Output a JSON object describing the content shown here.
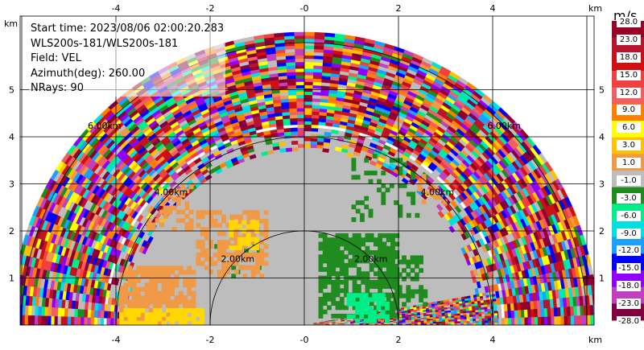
{
  "info": {
    "line1": "Start time: 2023/08/06 02:00:20.283",
    "line2": "WLS200s-181/WLS200s-181",
    "line3": "Field: VEL",
    "line4": "Azimuth(deg): 260.00",
    "line5": "NRays: 90"
  },
  "axes": {
    "unit_label": "km",
    "x_ticks": [
      "-4",
      "-2",
      "-0",
      "2",
      "4"
    ],
    "y_ticks": [
      "1",
      "2",
      "3",
      "4",
      "5"
    ]
  },
  "range_rings": [
    {
      "label": "2.00km"
    },
    {
      "label": "4.00km"
    },
    {
      "label": "6.00km"
    }
  ],
  "colorbar": {
    "title": "m/s",
    "ticks": [
      "28.0",
      "23.0",
      "18.0",
      "15.0",
      "12.0",
      "9.0",
      "6.0",
      "3.0",
      "1.0",
      "-1.0",
      "-3.0",
      "-6.0",
      "-9.0",
      "-12.0",
      "-15.0",
      "-18.0",
      "-23.0",
      "-28.0"
    ],
    "colors": [
      "#9a0026",
      "#b8142c",
      "#d01010",
      "#f04040",
      "#f06060",
      "#ff8000",
      "#ffff00",
      "#ffc000",
      "#f09a48",
      "#bdbdbd",
      "#208c20",
      "#00ee88",
      "#00e0e0",
      "#1aa0ff",
      "#0000ff",
      "#9000ff",
      "#c040c0",
      "#800040"
    ]
  }
}
